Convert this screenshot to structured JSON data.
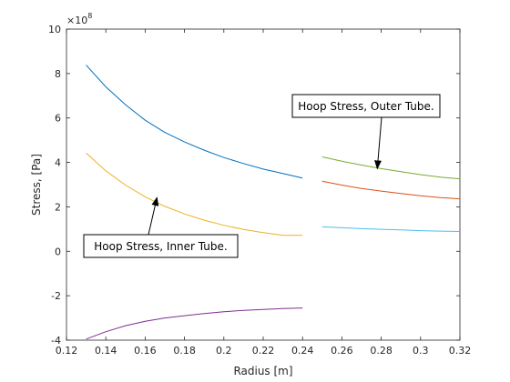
{
  "chart_data": {
    "type": "line",
    "title": "",
    "xlabel": "Radius [m]",
    "ylabel": "Stress, [Pa]",
    "exponent_label": "×10",
    "exponent_power": "8",
    "xlim": [
      0.12,
      0.32
    ],
    "ylim": [
      -4,
      10
    ],
    "y_multiplier": 100000000,
    "xticks": [
      0.12,
      0.14,
      0.16,
      0.18,
      0.2,
      0.22,
      0.24,
      0.26,
      0.28,
      0.3,
      0.32
    ],
    "xtick_labels": [
      "0.12",
      "0.14",
      "0.16",
      "0.18",
      "0.2",
      "0.22",
      "0.24",
      "0.26",
      "0.28",
      "0.3",
      "0.32"
    ],
    "yticks": [
      -4,
      -2,
      0,
      2,
      4,
      6,
      8,
      10
    ],
    "ytick_labels": [
      "-4",
      "-2",
      "0",
      "2",
      "4",
      "6",
      "8",
      "10"
    ],
    "grid": false,
    "legend": "none",
    "series": [
      {
        "color": "#0072BD",
        "x": [
          0.13,
          0.14,
          0.15,
          0.16,
          0.17,
          0.18,
          0.19,
          0.2,
          0.21,
          0.22,
          0.23,
          0.24
        ],
        "values": [
          8.38,
          7.4,
          6.6,
          5.9,
          5.35,
          4.92,
          4.55,
          4.22,
          3.95,
          3.7,
          3.5,
          3.3
        ]
      },
      {
        "color": "#EDB120",
        "x": [
          0.13,
          0.14,
          0.15,
          0.16,
          0.17,
          0.18,
          0.19,
          0.2,
          0.21,
          0.22,
          0.23,
          0.24
        ],
        "values": [
          4.42,
          3.62,
          2.98,
          2.45,
          2.02,
          1.68,
          1.4,
          1.17,
          0.98,
          0.84,
          0.72,
          0.72
        ]
      },
      {
        "color": "#7E2F8E",
        "x": [
          0.13,
          0.14,
          0.15,
          0.16,
          0.17,
          0.18,
          0.19,
          0.2,
          0.21,
          0.22,
          0.23,
          0.24
        ],
        "values": [
          -3.95,
          -3.62,
          -3.35,
          -3.15,
          -3.0,
          -2.9,
          -2.8,
          -2.72,
          -2.66,
          -2.62,
          -2.58,
          -2.55
        ]
      },
      {
        "color": "#77AC30",
        "x": [
          0.25,
          0.26,
          0.27,
          0.28,
          0.29,
          0.3,
          0.31,
          0.32
        ],
        "values": [
          4.25,
          4.05,
          3.88,
          3.72,
          3.58,
          3.45,
          3.34,
          3.26
        ]
      },
      {
        "color": "#D95319",
        "x": [
          0.25,
          0.26,
          0.27,
          0.28,
          0.29,
          0.3,
          0.31,
          0.32
        ],
        "values": [
          3.15,
          2.98,
          2.83,
          2.71,
          2.6,
          2.5,
          2.42,
          2.36
        ]
      },
      {
        "color": "#4DBEEE",
        "x": [
          0.25,
          0.26,
          0.27,
          0.28,
          0.29,
          0.3,
          0.31,
          0.32
        ],
        "values": [
          1.1,
          1.06,
          1.02,
          0.99,
          0.96,
          0.93,
          0.91,
          0.89
        ]
      }
    ],
    "annotations": [
      {
        "text": "Hoop Stress, Outer Tube.",
        "arrow_x": 0.278,
        "arrow_y": 3.72
      },
      {
        "text": "Hoop Stress, Inner Tube.",
        "arrow_x": 0.166,
        "arrow_y": 2.42
      }
    ]
  }
}
